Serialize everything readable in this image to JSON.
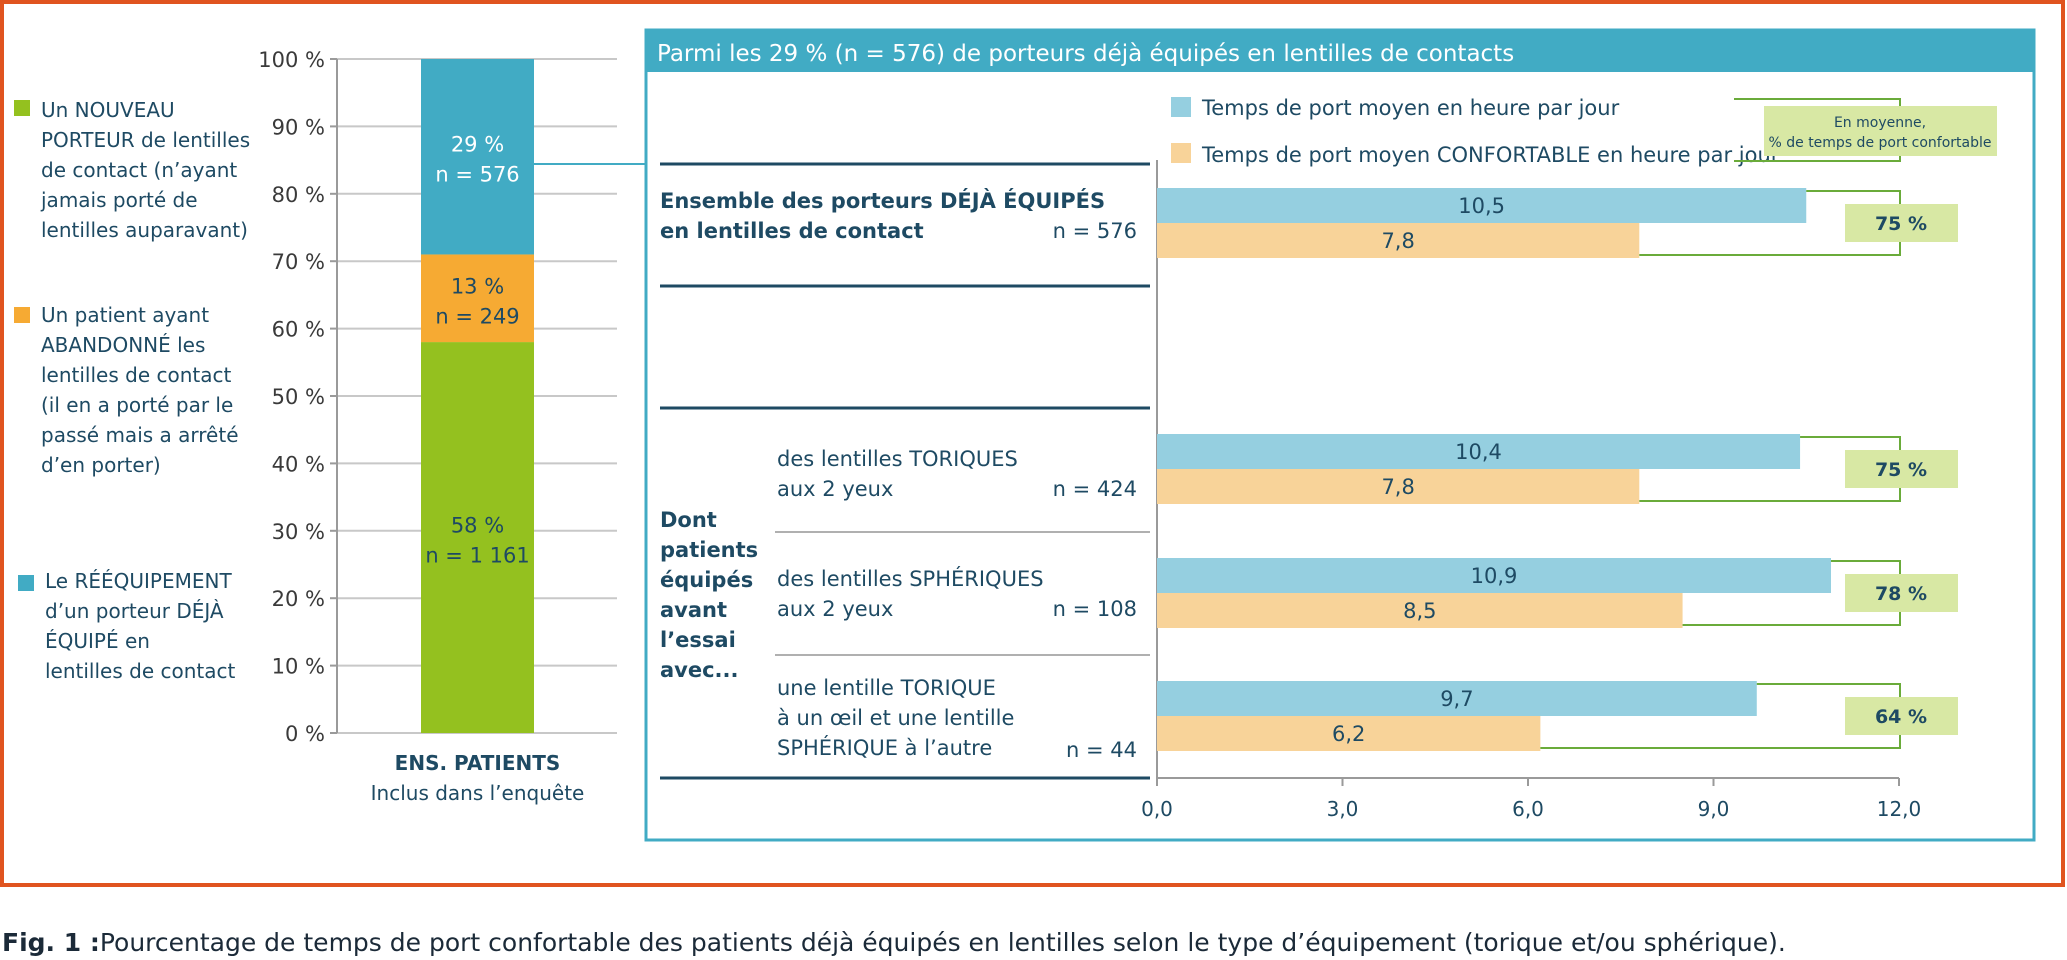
{
  "figure": {
    "caption_label": "Fig. 1 :",
    "caption_text": "Pourcentage de temps de port confortable des patients déjà équipés en lentilles selon le type d’équipement (torique et/ou sphérique)."
  },
  "colors": {
    "frame": "#e0541f",
    "blue": "#41abc4",
    "orange": "#f6aa33",
    "green": "#94c11f",
    "bar_blue": "#95cfe0",
    "bar_orange": "#f8d399",
    "badge": "#d8e8a4",
    "bracket": "#6aab3a",
    "text": "#1e4a63"
  },
  "chart_data": [
    {
      "type": "bar",
      "stacked": true,
      "categories": [
        "ENS. PATIENTS"
      ],
      "category_sublabel": "Inclus dans l’enquête",
      "ylim": [
        0,
        100
      ],
      "yticks": [
        "0 %",
        "10 %",
        "20 %",
        "30 %",
        "40 %",
        "50 %",
        "60 %",
        "70 %",
        "80 %",
        "90 %",
        "100 %"
      ],
      "grid": true,
      "series": [
        {
          "name": "Un NOUVEAU PORTEUR de lentilles de contact (n’ayant jamais porté de lentilles auparavant)",
          "legend_lines": [
            "Un NOUVEAU",
            "PORTEUR de lentilles",
            "de contact (n’ayant",
            "jamais porté de",
            "lentilles auparavant)"
          ],
          "value": 58,
          "label_pct": "58 %",
          "label_n": "n = 1 161",
          "color": "#94c11f"
        },
        {
          "name": "Un patient ayant ABANDONNÉ les lentilles de contact (il en a porté par le passé mais a arrêté d’en porter)",
          "legend_lines": [
            "Un patient ayant",
            "ABANDONNÉ les",
            "lentilles de contact",
            "(il en a porté par le",
            "passé mais a arrêté",
            "d’en porter)"
          ],
          "value": 13,
          "label_pct": "13 %",
          "label_n": "n = 249",
          "color": "#f6aa33"
        },
        {
          "name": "Le RÉÉQUIPEMENT d’un porteur DÉJÀ ÉQUIPÉ en lentilles de contact",
          "legend_lines": [
            "Le RÉÉQUIPEMENT",
            "d’un porteur DÉJÀ",
            "ÉQUIPÉ en",
            "lentilles de contact"
          ],
          "value": 29,
          "label_pct": "29 %",
          "label_n": "n = 576",
          "color": "#41abc4"
        }
      ]
    },
    {
      "type": "bar",
      "orientation": "horizontal",
      "title": "Parmi les 29 % (n = 576) de porteurs déjà équipés en lentilles de contacts",
      "xlim": [
        0,
        12
      ],
      "xticks": [
        "0,0",
        "3,0",
        "6,0",
        "9,0",
        "12,0"
      ],
      "legend": [
        "Temps de port moyen en heure par jour",
        "Temps de port moyen CONFORTABLE en heure par jour"
      ],
      "pct_header_lines": [
        "En moyenne,",
        "% de temps de port confortable"
      ],
      "group_label_lines": [
        "Dont",
        "patients",
        "équipés",
        "avant",
        "l’essai",
        "avec..."
      ],
      "rows": [
        {
          "label_lines": [
            "Ensemble des porteurs DÉJÀ ÉQUIPÉS",
            "en lentilles de contact"
          ],
          "n": "n = 576",
          "bold": true,
          "mean": 10.5,
          "mean_label": "10,5",
          "comfort": 7.8,
          "comfort_label": "7,8",
          "pct": "75 %"
        },
        {
          "label_lines": [
            "des lentilles TORIQUES",
            "aux 2 yeux"
          ],
          "n": "n = 424",
          "bold": false,
          "mean": 10.4,
          "mean_label": "10,4",
          "comfort": 7.8,
          "comfort_label": "7,8",
          "pct": "75 %"
        },
        {
          "label_lines": [
            "des lentilles SPHÉRIQUES",
            "aux 2 yeux"
          ],
          "n": "n = 108",
          "bold": false,
          "mean": 10.9,
          "mean_label": "10,9",
          "comfort": 8.5,
          "comfort_label": "8,5",
          "pct": "78 %"
        },
        {
          "label_lines": [
            "une lentille TORIQUE",
            "à un œil et une lentille",
            "SPHÉRIQUE à l’autre"
          ],
          "n": "n = 44",
          "bold": false,
          "mean": 9.7,
          "mean_label": "9,7",
          "comfort": 6.2,
          "comfort_label": "6,2",
          "pct": "64 %"
        }
      ]
    }
  ]
}
